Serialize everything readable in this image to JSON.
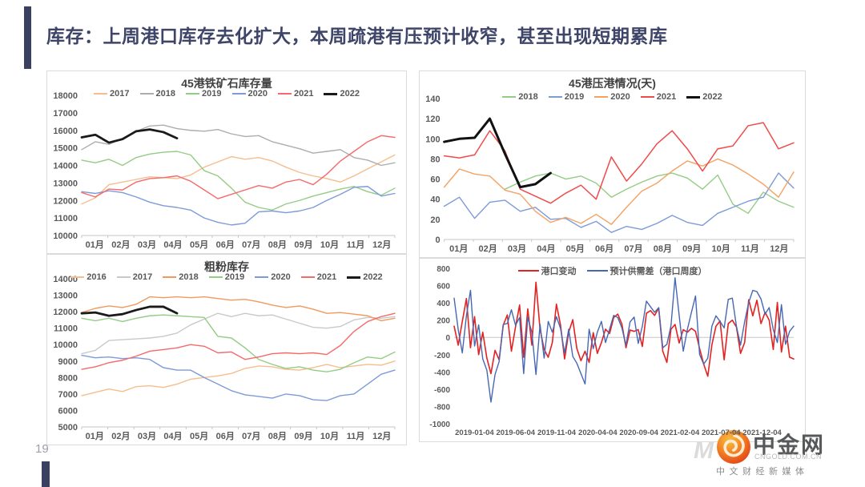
{
  "header": {
    "title": "库存：上周港口库存去化扩大，本周疏港有压预计收窄，甚至出现短期累库"
  },
  "footer": {
    "page_number": "19"
  },
  "logo": {
    "watermark": "M",
    "name": "中金网",
    "domain": "CNGOLD.COM.CN",
    "tagline": "中文财经新媒体"
  },
  "colors": {
    "accent_navy": "#3A4160",
    "title_text": "#3E4568",
    "box_border": "#DBDBDB",
    "axis_line": "#C6C6C6",
    "tick_text": "#595959"
  },
  "chart_data": [
    {
      "type": "line",
      "title": "45港铁矿石库存量",
      "x_label_mode": "months",
      "x_labels": [
        "01月",
        "02月",
        "03月",
        "04月",
        "05月",
        "06月",
        "07月",
        "08月",
        "09月",
        "10月",
        "11月",
        "12月"
      ],
      "ylim": [
        10000,
        18000
      ],
      "ytick_step": 1000,
      "slots": 24,
      "grid": false,
      "legend_position": "top",
      "series": [
        {
          "name": "2017",
          "color": "#F5BE8E",
          "width": 1.4,
          "start": 0,
          "values": [
            11800,
            12150,
            12900,
            13050,
            13200,
            13350,
            13300,
            13250,
            13450,
            13900,
            14200,
            14500,
            14350,
            14450,
            14250,
            13900,
            13600,
            13400,
            13250,
            13050,
            13400,
            13800,
            14200,
            14600
          ]
        },
        {
          "name": "2018",
          "color": "#ADADAD",
          "width": 1.4,
          "start": 0,
          "values": [
            14900,
            15350,
            15200,
            15550,
            15950,
            16250,
            16300,
            16100,
            16000,
            15950,
            16050,
            15800,
            15650,
            15700,
            15350,
            15150,
            14950,
            14700,
            14800,
            14900,
            14450,
            14300,
            14000,
            14150
          ]
        },
        {
          "name": "2019",
          "color": "#95CC85",
          "width": 1.4,
          "start": 0,
          "values": [
            14300,
            14150,
            14350,
            14000,
            14450,
            14650,
            14750,
            14800,
            14600,
            13700,
            13400,
            12700,
            11900,
            11600,
            11450,
            11800,
            12000,
            12250,
            12450,
            12650,
            12800,
            12500,
            12300,
            12700
          ]
        },
        {
          "name": "2020",
          "color": "#7D9BD9",
          "width": 1.4,
          "start": 0,
          "values": [
            12500,
            12400,
            12550,
            12450,
            12200,
            11900,
            11700,
            11600,
            11450,
            11000,
            10750,
            10600,
            10700,
            11350,
            11400,
            11300,
            11400,
            11600,
            12000,
            12350,
            12750,
            12800,
            12250,
            12400
          ]
        },
        {
          "name": "2021",
          "color": "#F56A6A",
          "width": 1.4,
          "start": 0,
          "values": [
            12450,
            12200,
            12650,
            12600,
            13050,
            13250,
            13300,
            13400,
            13100,
            12600,
            12100,
            12350,
            12600,
            12850,
            12700,
            13050,
            13200,
            12900,
            13500,
            14250,
            14800,
            15350,
            15700,
            15600
          ]
        },
        {
          "name": "2022",
          "color": "#1A1A1A",
          "width": 2.8,
          "start": 0,
          "values": [
            15600,
            15750,
            15300,
            15500,
            15950,
            16050,
            15900,
            15550
          ]
        }
      ]
    },
    {
      "type": "line",
      "title": "粗粉库存",
      "x_label_mode": "months",
      "x_labels": [
        "01月",
        "02月",
        "03月",
        "04月",
        "05月",
        "06月",
        "07月",
        "08月",
        "09月",
        "10月",
        "11月",
        "12月"
      ],
      "ylim": [
        5000,
        14000
      ],
      "ytick_step": 1000,
      "slots": 24,
      "grid": false,
      "legend_position": "top",
      "series": [
        {
          "name": "2016",
          "color": "#F5BE8E",
          "width": 1.4,
          "start": 0,
          "values": [
            6900,
            7100,
            7300,
            7150,
            7450,
            7500,
            7400,
            7600,
            7900,
            8000,
            8100,
            8250,
            8550,
            8700,
            8650,
            8500,
            8450,
            8600,
            8800,
            8600,
            8700,
            8800,
            8750,
            9000
          ]
        },
        {
          "name": "2017",
          "color": "#C9C9C9",
          "width": 1.4,
          "start": 0,
          "values": [
            9450,
            9650,
            10250,
            10300,
            10350,
            10400,
            10500,
            10700,
            11200,
            11550,
            11900,
            11700,
            11900,
            11750,
            11800,
            11550,
            11300,
            11050,
            11000,
            11100,
            11500,
            11650,
            11600,
            11700
          ]
        },
        {
          "name": "2018",
          "color": "#F09A5E",
          "width": 1.4,
          "start": 0,
          "values": [
            11950,
            12200,
            12350,
            12250,
            12450,
            12900,
            12850,
            12900,
            12850,
            12900,
            12800,
            12700,
            12750,
            12600,
            12400,
            12250,
            12350,
            12150,
            11900,
            11950,
            11850,
            11750,
            11450,
            11600
          ]
        },
        {
          "name": "2019",
          "color": "#95CC85",
          "width": 1.4,
          "start": 0,
          "values": [
            11600,
            11450,
            11600,
            11400,
            11600,
            11750,
            11800,
            11750,
            11700,
            11650,
            10500,
            10400,
            9800,
            9100,
            8800,
            8550,
            8650,
            8450,
            8350,
            8500,
            8900,
            9250,
            9150,
            9550
          ]
        },
        {
          "name": "2020",
          "color": "#7D9BD9",
          "width": 1.4,
          "start": 0,
          "values": [
            9350,
            9200,
            9250,
            9150,
            9200,
            9100,
            8600,
            8450,
            8450,
            8000,
            7600,
            7200,
            6950,
            6850,
            6750,
            7000,
            6900,
            6650,
            6600,
            6900,
            7000,
            7600,
            8200,
            8450
          ]
        },
        {
          "name": "2021",
          "color": "#F56A6A",
          "width": 1.4,
          "start": 0,
          "values": [
            8500,
            8650,
            8900,
            9050,
            9300,
            9600,
            9700,
            9800,
            10000,
            9900,
            9500,
            9550,
            9100,
            9250,
            9450,
            9500,
            9450,
            9500,
            9400,
            9950,
            10800,
            11400,
            11700,
            11900
          ]
        },
        {
          "name": "2022",
          "color": "#1A1A1A",
          "width": 2.8,
          "start": 0,
          "values": [
            11900,
            11950,
            11750,
            11850,
            12100,
            12300,
            12300,
            11900
          ]
        }
      ]
    },
    {
      "type": "line",
      "title": "45港压港情况(天)",
      "x_label_mode": "months",
      "x_labels": [
        "01月",
        "02月",
        "03月",
        "04月",
        "05月",
        "06月",
        "07月",
        "08月",
        "09月",
        "10月",
        "11月",
        "12月"
      ],
      "ylim": [
        0,
        140
      ],
      "ytick_step": 20,
      "slots": 24,
      "grid": false,
      "legend_position": "top",
      "series": [
        {
          "name": "2018",
          "color": "#95CC85",
          "width": 1.4,
          "start": 4,
          "values": [
            50,
            57,
            63,
            66,
            60,
            63,
            56,
            42,
            50,
            57,
            63,
            66,
            61,
            50,
            64,
            35,
            26,
            47,
            38,
            32
          ]
        },
        {
          "name": "2019",
          "color": "#7D9BD9",
          "width": 1.4,
          "start": 0,
          "values": [
            33,
            42,
            21,
            37,
            39,
            28,
            32,
            20,
            21,
            12,
            18,
            7,
            13,
            10,
            16,
            24,
            17,
            14,
            26,
            32,
            38,
            42,
            66,
            51
          ]
        },
        {
          "name": "2020",
          "color": "#F3A263",
          "width": 1.4,
          "start": 0,
          "values": [
            52,
            70,
            65,
            63,
            49,
            45,
            28,
            17,
            22,
            16,
            25,
            15,
            32,
            48,
            56,
            68,
            78,
            73,
            80,
            74,
            65,
            55,
            42,
            67
          ]
        },
        {
          "name": "2021",
          "color": "#F04B4B",
          "width": 1.5,
          "start": 0,
          "values": [
            83,
            81,
            84,
            108,
            88,
            50,
            43,
            36,
            46,
            54,
            40,
            82,
            58,
            75,
            95,
            108,
            90,
            68,
            90,
            93,
            113,
            116,
            90,
            96
          ]
        },
        {
          "name": "2022",
          "color": "#111111",
          "width": 3,
          "start": 0,
          "values": [
            97,
            100,
            101,
            120,
            85,
            52,
            55,
            66
          ]
        }
      ]
    },
    {
      "type": "line",
      "title": "",
      "x_label_mode": "dates",
      "x_labels": [
        "2019-01-04",
        "2019-06-04",
        "2019-11-04",
        "2020-04-04",
        "2020-09-04",
        "2021-02-04",
        "2021-07-04",
        "2021-12-04"
      ],
      "ylim": [
        -1000,
        800
      ],
      "ytick_step": 200,
      "slots": 84,
      "grid": false,
      "legend_position": "top",
      "series": [
        {
          "name": "港口变动",
          "color": "#E32222",
          "width": 1.6,
          "start": 0,
          "values": [
            130,
            -90,
            185,
            450,
            -120,
            240,
            -200,
            60,
            -240,
            -420,
            -150,
            -260,
            140,
            260,
            -160,
            120,
            375,
            -230,
            330,
            -90,
            640,
            95,
            -140,
            -230,
            -60,
            385,
            145,
            -250,
            60,
            205,
            -130,
            -270,
            -160,
            -290,
            55,
            -185,
            -60,
            95,
            45,
            230,
            270,
            155,
            -120,
            85,
            70,
            90,
            -105,
            280,
            310,
            255,
            340,
            -160,
            -290,
            95,
            150,
            -65,
            90,
            60,
            105,
            70,
            -130,
            -310,
            -450,
            -85,
            130,
            190,
            -260,
            160,
            200,
            120,
            -185,
            -60,
            435,
            250,
            430,
            160,
            290,
            200,
            -140,
            405,
            -170,
            130,
            -230,
            -250
          ]
        },
        {
          "name": "预计供需差（港口周度）",
          "color": "#4668B3",
          "width": 1.4,
          "start": 0,
          "values": [
            455,
            90,
            -180,
            250,
            545,
            -100,
            145,
            -250,
            -380,
            -750,
            -430,
            -280,
            150,
            160,
            320,
            140,
            230,
            -420,
            230,
            60,
            -430,
            150,
            -240,
            185,
            60,
            240,
            105,
            -180,
            95,
            -220,
            -300,
            -420,
            -540,
            95,
            -130,
            60,
            185,
            -60,
            95,
            255,
            230,
            110,
            -90,
            180,
            235,
            -70,
            130,
            420,
            355,
            290,
            345,
            -120,
            -80,
            135,
            690,
            255,
            -160,
            90,
            290,
            480,
            -200,
            -310,
            -240,
            130,
            250,
            185,
            110,
            440,
            455,
            130,
            -90,
            180,
            405,
            545,
            530,
            445,
            270,
            345,
            90,
            -60,
            380,
            -80,
            70,
            130
          ]
        }
      ]
    }
  ]
}
